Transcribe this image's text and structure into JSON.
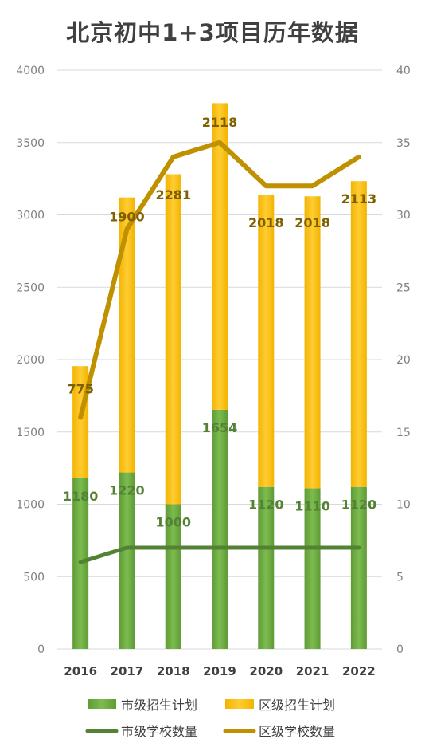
{
  "chart_data": {
    "type": "bar",
    "title": "北京初中1+3项目历年数据",
    "categories": [
      "2016",
      "2017",
      "2018",
      "2019",
      "2020",
      "2021",
      "2022"
    ],
    "stacked": true,
    "y_left": {
      "min": 0,
      "max": 4000,
      "ticks": [
        "0",
        "500",
        "1000",
        "1500",
        "2000",
        "2500",
        "3000",
        "3500",
        "4000"
      ]
    },
    "y_right": {
      "min": 0,
      "max": 40,
      "ticks": [
        "0",
        "5",
        "10",
        "15",
        "20",
        "25",
        "30",
        "35",
        "40"
      ]
    },
    "grid": true,
    "legend_position": "bottom",
    "series": [
      {
        "name": "市级招生计划",
        "kind": "bar",
        "axis": "left",
        "color": "#70ad47",
        "values": [
          1180,
          1220,
          1000,
          1654,
          1120,
          1110,
          1120
        ],
        "labels": [
          "1180",
          "1220",
          "1000",
          "1654",
          "1120",
          "1110",
          "1120"
        ],
        "label_color": "#548235"
      },
      {
        "name": "区级招生计划",
        "kind": "bar",
        "axis": "left",
        "color": "#ffc000",
        "values": [
          775,
          1900,
          2281,
          2118,
          2018,
          2018,
          2113
        ],
        "labels": [
          "775",
          "1900",
          "2281",
          "2118",
          "2018",
          "2018",
          "2113"
        ],
        "label_color": "#7f6000"
      },
      {
        "name": "市级学校数量",
        "kind": "line",
        "axis": "right",
        "color": "#548235",
        "values": [
          6,
          7,
          7,
          7,
          7,
          7,
          7
        ]
      },
      {
        "name": "区级学校数量",
        "kind": "line",
        "axis": "right",
        "color": "#bf9000",
        "values": [
          16,
          29,
          34,
          35,
          32,
          32,
          34
        ]
      }
    ]
  }
}
